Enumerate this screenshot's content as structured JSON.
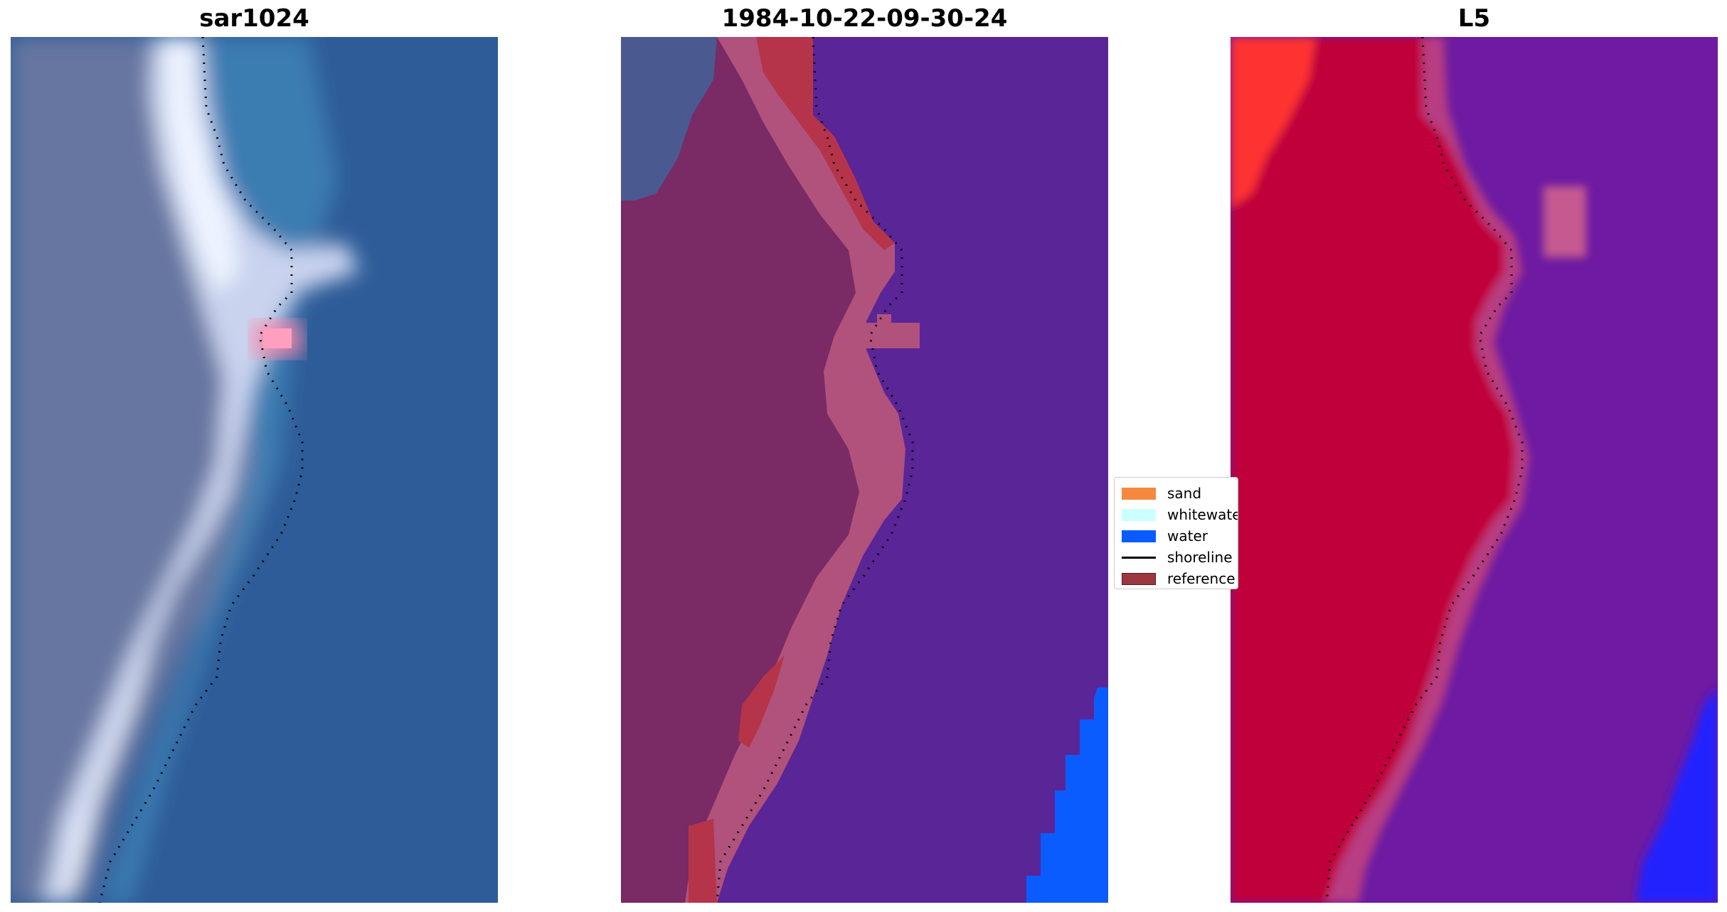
{
  "panels": [
    {
      "title": "sar1024",
      "kind": "satellite-image"
    },
    {
      "title": "1984-10-22-09-30-24",
      "kind": "classified-image"
    },
    {
      "title": "L5",
      "kind": "false-color-image"
    }
  ],
  "legend": {
    "items": [
      {
        "label": "sand",
        "color": "#f5893d",
        "kind": "patch"
      },
      {
        "label": "whitewater",
        "color": "#ccffff",
        "kind": "patch"
      },
      {
        "label": "water",
        "color": "#0a5cff",
        "kind": "patch"
      },
      {
        "label": "shoreline",
        "color": "#000000",
        "kind": "line"
      },
      {
        "label": "reference",
        "color": "#9b3840",
        "kind": "patch"
      }
    ]
  },
  "colors": {
    "sar_water": "#2e5c98",
    "sar_land": "#6676a0",
    "sar_white": "#e6f0fa",
    "class_water_purple": "#5a2597",
    "class_land": "#7a2a64",
    "class_sand_pink": "#b0527c",
    "class_reference_red": "#b6344a",
    "class_water_blue": "#0b5cff",
    "l5_red": "#c0063a",
    "l5_bright_red": "#ff3333",
    "l5_purple": "#6e1aa2",
    "l5_blue": "#2222ff"
  }
}
